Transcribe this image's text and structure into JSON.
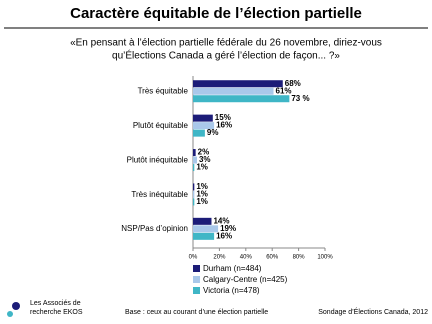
{
  "chart_data": {
    "type": "hbar",
    "title": "Caractère équitable de l’élection partielle",
    "subtitle": [
      "«En pensant à l’élection partielle fédérale du 26 novembre, diriez-vous",
      "qu’Élections Canada a géré l’élection de façon... ?»"
    ],
    "categories": [
      "Très équitable",
      "Plutôt équitable",
      "Plutôt inéquitable",
      "Très inéquitable",
      "NSP/Pas d’opinion"
    ],
    "series": [
      {
        "name": "Durham (n=484)",
        "color": "#1c1c78",
        "values": [
          68,
          15,
          2,
          1,
          14
        ],
        "value_labels": [
          "68%",
          "15%",
          "2%",
          "1%",
          "14%"
        ]
      },
      {
        "name": "Calgary-Centre (n=425)",
        "color": "#a9c8ea",
        "values": [
          61,
          16,
          3,
          1,
          19
        ],
        "value_labels": [
          "61%",
          "16%",
          "3%",
          "1%",
          "19%"
        ]
      },
      {
        "name": "Victoria (n=478)",
        "color": "#3fb6c6",
        "values": [
          73,
          9,
          1,
          1,
          16
        ],
        "value_labels": [
          "73 %",
          "9%",
          "1%",
          "1%",
          "16%"
        ]
      }
    ],
    "xlim": [
      0,
      100
    ],
    "xticks": [
      {
        "value": 0,
        "label": "0%"
      },
      {
        "value": 20,
        "label": "20%"
      },
      {
        "value": 40,
        "label": "40%"
      },
      {
        "value": 60,
        "label": "60%"
      },
      {
        "value": 80,
        "label": "80%"
      },
      {
        "value": 100,
        "label": "100%"
      }
    ],
    "notes": [
      "Base : ceux au courant d’une élection partielle",
      "Sondage d’Élections Canada, 2012"
    ]
  },
  "logo": [
    "Les Associés de",
    "recherche EKOS"
  ]
}
